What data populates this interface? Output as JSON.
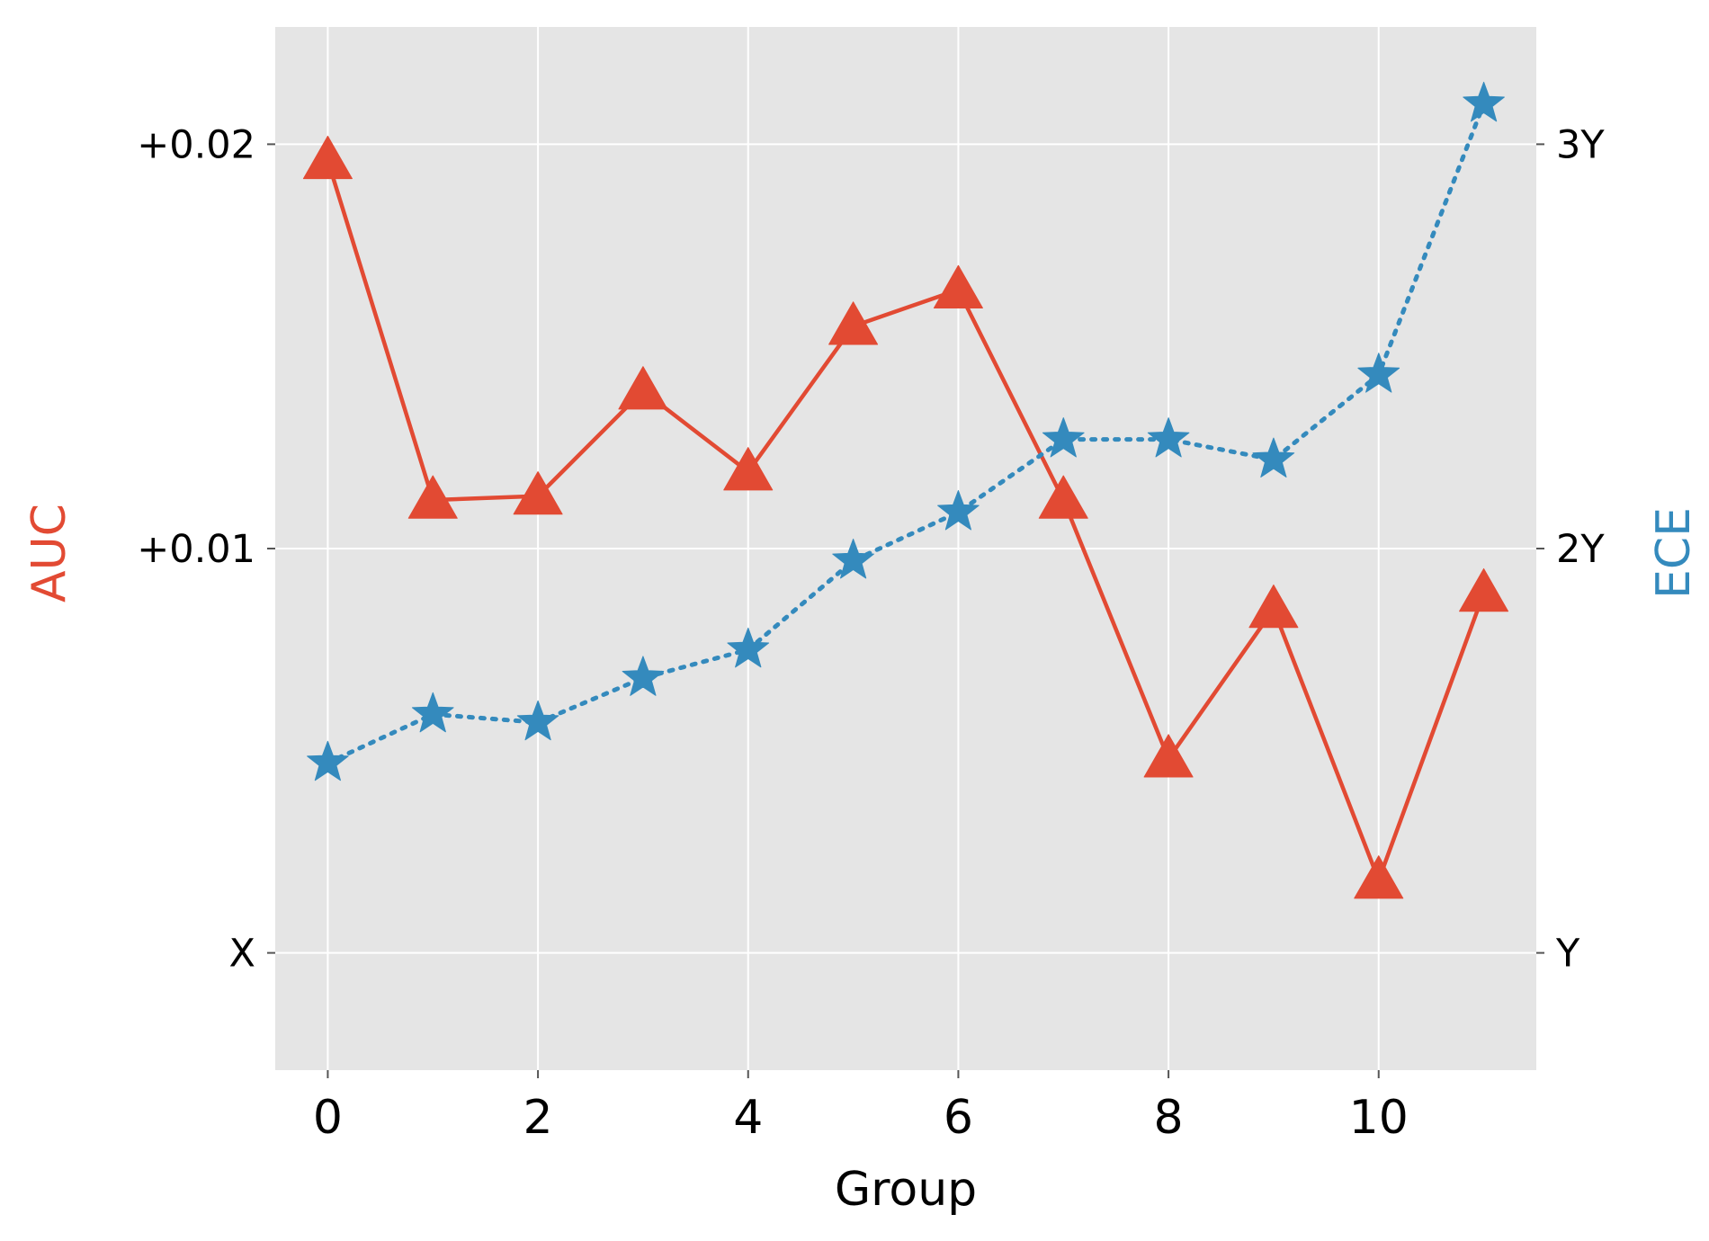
{
  "chart_data": {
    "type": "line",
    "title": "",
    "xlabel": "Group",
    "ylabel_left": "AUC",
    "ylabel_right": "ECE",
    "xlim": [
      -0.5,
      11.5
    ],
    "xticks": [
      {
        "value": 0,
        "label": "0"
      },
      {
        "value": 2,
        "label": "2"
      },
      {
        "value": 4,
        "label": "4"
      },
      {
        "value": 6,
        "label": "6"
      },
      {
        "value": 8,
        "label": "8"
      },
      {
        "value": 10,
        "label": "10"
      }
    ],
    "left_axis": {
      "ylim": [
        -0.0029,
        0.0229
      ],
      "ticks": [
        {
          "value": 0.0,
          "label": "X"
        },
        {
          "value": 0.01,
          "label": "+0.01"
        },
        {
          "value": 0.02,
          "label": "+0.02"
        }
      ]
    },
    "right_axis": {
      "ylim": [
        0.71,
        3.29
      ],
      "ticks": [
        {
          "value": 1.0,
          "label": "Y"
        },
        {
          "value": 2.0,
          "label": "2Y"
        },
        {
          "value": 3.0,
          "label": "3Y"
        }
      ]
    },
    "grid": true,
    "background": "#e5e5e5",
    "series": [
      {
        "axis": "left",
        "color": "#e24a33",
        "marker": "triangle",
        "linestyle": "solid",
        "x": [
          0,
          1,
          2,
          3,
          4,
          5,
          6,
          7,
          8,
          9,
          10,
          11
        ],
        "values": [
          0.0196,
          0.0112,
          0.0113,
          0.0139,
          0.0119,
          0.0155,
          0.0164,
          0.0112,
          0.0048,
          0.0085,
          0.0018,
          0.0089
        ]
      },
      {
        "axis": "right",
        "color": "#348abd",
        "marker": "star",
        "linestyle": "dotted",
        "x": [
          0,
          1,
          2,
          3,
          4,
          5,
          6,
          7,
          8,
          9,
          10,
          11
        ],
        "values": [
          1.47,
          1.59,
          1.57,
          1.68,
          1.75,
          1.97,
          2.09,
          2.27,
          2.27,
          2.22,
          2.43,
          3.1
        ]
      }
    ]
  }
}
